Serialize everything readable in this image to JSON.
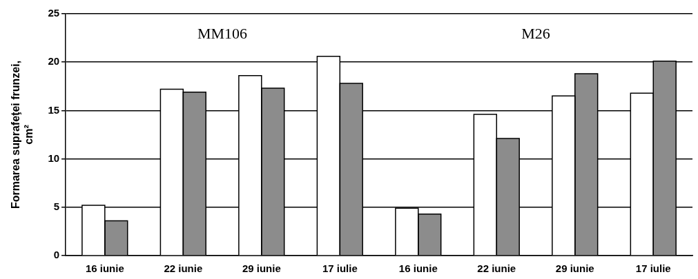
{
  "chart_data": {
    "type": "bar",
    "ylabel": "Formarea suprafeţei frunzei, cm²",
    "categories": [
      "16 iunie",
      "22 iunie",
      "29 iunie",
      "17 iulie",
      "16 iunie",
      "22 iunie",
      "29 iunie",
      "17 iulie"
    ],
    "series": [
      {
        "color": "#ffffff",
        "values": [
          5.2,
          17.2,
          18.6,
          20.6,
          4.9,
          14.6,
          16.5,
          16.8
        ]
      },
      {
        "color": "#8c8c8c",
        "values": [
          3.6,
          16.9,
          17.3,
          17.8,
          4.3,
          12.1,
          18.8,
          20.1
        ]
      }
    ],
    "ylim": [
      0,
      25
    ],
    "yticks": [
      0,
      5,
      10,
      15,
      20,
      25
    ],
    "grid": "y",
    "legend": false,
    "annotations": [
      "MM106",
      "M26"
    ]
  }
}
